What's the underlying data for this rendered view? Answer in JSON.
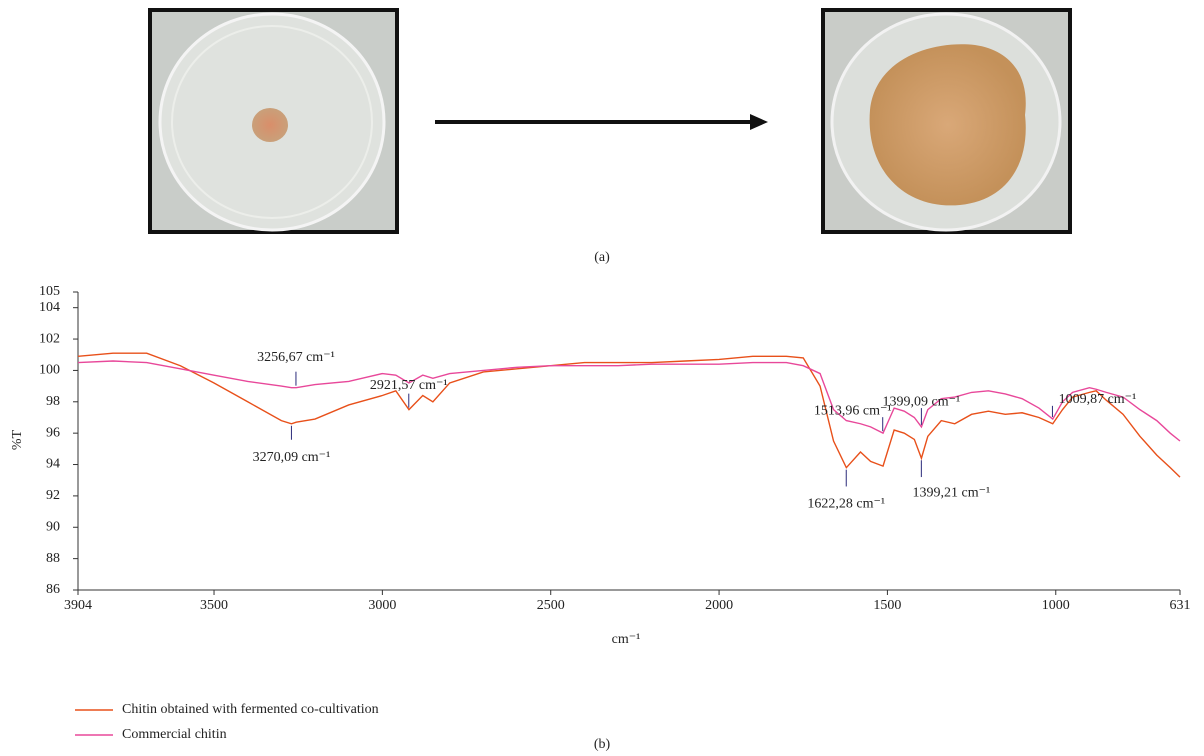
{
  "chart_data": {
    "type": "line",
    "panel_labels": [
      "(a)",
      "(b)"
    ],
    "xlabel": "cm⁻¹",
    "ylabel": "%T",
    "x": [
      3904,
      3800,
      3700,
      3600,
      3500,
      3400,
      3300,
      3270,
      3256,
      3200,
      3100,
      3000,
      2960,
      2921,
      2880,
      2850,
      2800,
      2700,
      2600,
      2500,
      2400,
      2300,
      2200,
      2100,
      2000,
      1900,
      1800,
      1750,
      1700,
      1660,
      1622,
      1580,
      1550,
      1513,
      1480,
      1450,
      1420,
      1399,
      1380,
      1340,
      1300,
      1250,
      1200,
      1150,
      1100,
      1050,
      1009,
      980,
      950,
      900,
      880,
      850,
      800,
      750,
      700,
      660,
      631
    ],
    "series": [
      {
        "name": "Chitin obtained with fermented co-cultivation",
        "color": "#e8501a",
        "values": [
          100.9,
          101.1,
          101.1,
          100.3,
          99.2,
          98.0,
          96.8,
          96.6,
          96.7,
          96.9,
          97.8,
          98.4,
          98.7,
          97.5,
          98.4,
          98.0,
          99.2,
          99.9,
          100.1,
          100.3,
          100.5,
          100.5,
          100.5,
          100.6,
          100.7,
          100.9,
          100.9,
          100.8,
          99.0,
          95.5,
          93.8,
          94.8,
          94.2,
          93.9,
          96.2,
          96.0,
          95.6,
          94.4,
          95.8,
          96.8,
          96.6,
          97.2,
          97.4,
          97.2,
          97.3,
          97.0,
          96.6,
          97.5,
          98.3,
          98.6,
          98.7,
          98.1,
          97.2,
          95.8,
          94.6,
          93.8,
          93.2
        ]
      },
      {
        "name": "Commercial chitin",
        "color": "#e8489a",
        "values": [
          100.5,
          100.6,
          100.5,
          100.1,
          99.7,
          99.3,
          99.0,
          98.9,
          98.9,
          99.1,
          99.3,
          99.8,
          99.7,
          99.2,
          99.7,
          99.5,
          99.8,
          100.0,
          100.2,
          100.3,
          100.3,
          100.3,
          100.4,
          100.4,
          100.4,
          100.5,
          100.5,
          100.3,
          99.8,
          97.5,
          96.8,
          96.6,
          96.4,
          96.0,
          97.6,
          97.4,
          97.0,
          96.4,
          97.5,
          98.2,
          98.3,
          98.6,
          98.7,
          98.5,
          98.2,
          97.6,
          96.9,
          98.0,
          98.6,
          98.9,
          98.8,
          98.6,
          98.3,
          97.5,
          96.8,
          96.0,
          95.5
        ]
      }
    ],
    "xlim": [
      3904,
      631
    ],
    "xticks": [
      3904,
      3500,
      3000,
      2500,
      2000,
      1500,
      1000,
      631
    ],
    "ylim": [
      86,
      105
    ],
    "yticks": [
      86,
      88,
      90,
      92,
      94,
      96,
      98,
      100,
      102,
      104,
      105
    ],
    "annotations": [
      {
        "label": "3256,67 cm⁻¹",
        "x": 3256.67,
        "y": 98.9
      },
      {
        "label": "3270,09 cm⁻¹",
        "x": 3270.09,
        "y": 96.6
      },
      {
        "label": "2921,57 cm⁻¹",
        "x": 2921.57,
        "y": 97.5
      },
      {
        "label": "1622,28 cm⁻¹",
        "x": 1622.28,
        "y": 93.8
      },
      {
        "label": "1513,96 cm⁻¹",
        "x": 1513.96,
        "y": 96.0
      },
      {
        "label": "1399,09 cm⁻¹",
        "x": 1399.09,
        "y": 96.4
      },
      {
        "label": "1399,21 cm⁻¹",
        "x": 1399.21,
        "y": 94.4
      },
      {
        "label": "1009,87 cm⁻¹",
        "x": 1009.87,
        "y": 96.9
      }
    ]
  }
}
